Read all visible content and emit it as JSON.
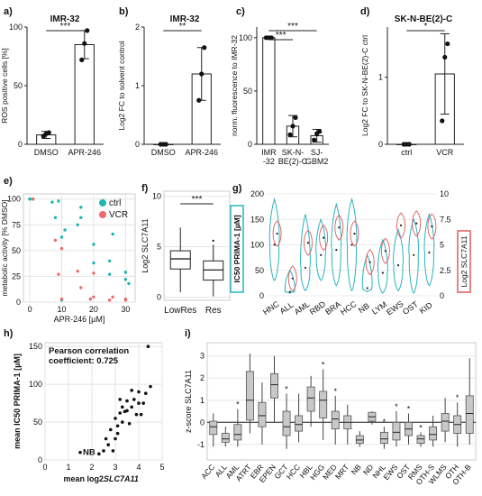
{
  "charts": [
    {
      "id": "a",
      "panel_label": "a)",
      "type": "bar",
      "title": "IMR-32",
      "ylabel": "ROS positive cells [%]",
      "categories": [
        "DMSO",
        "APR-246"
      ],
      "values": [
        8,
        85
      ],
      "errors": [
        3,
        12
      ],
      "points": [
        [
          7,
          9,
          10
        ],
        [
          72,
          86,
          97
        ]
      ],
      "ylim": [
        0,
        100
      ],
      "yticks": [
        0,
        50,
        100
      ],
      "significance": [
        {
          "from": 0,
          "to": 1,
          "label": "***"
        }
      ]
    },
    {
      "id": "b",
      "panel_label": "b)",
      "type": "bar",
      "title": "IMR-32",
      "ylabel": "Log2 FC to solvent control",
      "categories": [
        "DMSO",
        "APR-246"
      ],
      "values": [
        0,
        1.2
      ],
      "errors": [
        0,
        0.45
      ],
      "points": [
        [
          0,
          0,
          0
        ],
        [
          0.75,
          1.2,
          1.65
        ]
      ],
      "ylim": [
        0,
        2
      ],
      "yticks": [
        0,
        1,
        2
      ],
      "significance": [
        {
          "from": 0,
          "to": 1,
          "label": "**"
        }
      ]
    },
    {
      "id": "c",
      "panel_label": "c)",
      "type": "bar",
      "title": "",
      "ylabel": "norm. fluorescence to IMR-32",
      "categories": [
        "IMR -32",
        "SK-N- BE(2)-C",
        "SJ- GBM2"
      ],
      "values": [
        100,
        17,
        8
      ],
      "errors": [
        0,
        10,
        6
      ],
      "points": [
        [
          100,
          100,
          100
        ],
        [
          9,
          17,
          25
        ],
        [
          4,
          10,
          12
        ]
      ],
      "ylim": [
        0,
        110
      ],
      "yticks": [
        0,
        50,
        100
      ],
      "significance": [
        {
          "from": 0,
          "to": 1,
          "label": "***"
        },
        {
          "from": 0,
          "to": 2,
          "label": "***"
        }
      ]
    },
    {
      "id": "d",
      "panel_label": "d)",
      "type": "bar",
      "title": "SK-N-BE(2)-C",
      "ylabel": "Log2 FC to SK-N-BE(2)-C ctrl",
      "categories": [
        "ctrl",
        "VCR"
      ],
      "values": [
        0,
        1.05
      ],
      "errors": [
        0,
        0.6
      ],
      "points": [
        [
          0,
          0,
          0
        ],
        [
          0.35,
          1.3,
          1.5
        ]
      ],
      "ylim": [
        0,
        1.75
      ],
      "yticks": [
        0,
        1
      ],
      "significance": [
        {
          "from": 0,
          "to": 1,
          "label": "*"
        }
      ]
    }
  ],
  "scatter_e": {
    "panel_label": "e)",
    "type": "scatter",
    "xlabel": "APR-246 [µM]",
    "ylabel": "metabolic activity [% DMSO]",
    "xlim": [
      -2,
      33
    ],
    "ylim": [
      0,
      105
    ],
    "xticks": [
      0,
      10,
      20,
      30
    ],
    "yticks": [
      0,
      25,
      50,
      75,
      100
    ],
    "series": [
      {
        "name": "ctrl",
        "color": "#1fb6ad",
        "x": [
          0,
          0,
          0,
          1,
          7,
          8,
          9,
          10,
          10,
          11,
          15,
          16,
          16,
          19,
          20,
          20,
          25,
          25,
          26,
          30,
          30,
          31
        ],
        "y": [
          100,
          100,
          100,
          100,
          97,
          82,
          98,
          2,
          63,
          70,
          75,
          82,
          92,
          3,
          38,
          56,
          27,
          40,
          66,
          22,
          29,
          18
        ]
      },
      {
        "name": "VCR",
        "color": "#ee6b6b",
        "x": [
          1,
          8,
          9,
          10,
          10,
          15,
          16,
          19,
          20,
          20,
          25,
          26,
          30,
          30
        ],
        "y": [
          100,
          60,
          27,
          52,
          3,
          30,
          14,
          3,
          5,
          28,
          2,
          5,
          3,
          2
        ]
      }
    ]
  },
  "box_f": {
    "panel_label": "f)",
    "type": "box",
    "ylabel": "Log2 SLC7A11",
    "ylim": [
      -0.3,
      10.5
    ],
    "yticks": [
      0,
      5,
      10
    ],
    "categories": [
      "LowRes",
      "Res"
    ],
    "boxes": [
      {
        "whislo": 0.5,
        "q1": 2.8,
        "med": 3.8,
        "q3": 4.6,
        "whishi": 6.9
      },
      {
        "whislo": 0.1,
        "q1": 1.7,
        "med": 2.7,
        "q3": 3.6,
        "whishi": 5.2
      }
    ],
    "outliers": [
      [],
      [
        5.6
      ]
    ],
    "significance": [
      {
        "from": 0,
        "to": 1,
        "label": "***"
      }
    ]
  },
  "violin_g": {
    "panel_label": "g)",
    "type": "violin",
    "ylabel_left": "IC50 PRIMA-1 [µM]",
    "ylabel_right": "Log2 SLC7A11",
    "left_color": "#2ab3c0",
    "right_color": "#e05a5a",
    "ylim": [
      0,
      200
    ],
    "yticks": [
      0,
      50,
      100,
      150,
      200
    ],
    "right_yticks": [
      0,
      2.5,
      5,
      7.5,
      10
    ],
    "categories": [
      "HNC",
      "ALL",
      "AML",
      "RBD",
      "BRA",
      "HCC",
      "NB",
      "LYM",
      "EWS",
      "OST",
      "KID"
    ],
    "ic50_range": [
      [
        30,
        190
      ],
      [
        5,
        50
      ],
      [
        10,
        160
      ],
      [
        30,
        150
      ],
      [
        20,
        180
      ],
      [
        10,
        190
      ],
      [
        8,
        80
      ],
      [
        5,
        110
      ],
      [
        10,
        130
      ],
      [
        5,
        150
      ],
      [
        20,
        160
      ]
    ],
    "ic50_median": [
      100,
      8,
      55,
      80,
      90,
      100,
      15,
      45,
      60,
      80,
      85
    ],
    "log2_median": [
      6.1,
      1.7,
      5.2,
      5.7,
      6.7,
      6.1,
      3.3,
      4.4,
      6.9,
      7.1,
      6.8
    ]
  },
  "scatter_h": {
    "panel_label": "h)",
    "type": "scatter",
    "xlabel": "mean log2 SLC7A11",
    "ylabel": "mean IC50 PRIMA-1 [µM]",
    "xlim": [
      0,
      5
    ],
    "ylim": [
      0,
      155
    ],
    "xticks": [
      0,
      1,
      2,
      3,
      4,
      5
    ],
    "yticks": [
      0,
      50,
      100,
      150
    ],
    "annotation": "Pearson correlation coefficient: 0.725",
    "point_label": "NB",
    "point_label_x": 1.5,
    "point_label_y": 10,
    "x": [
      1.5,
      2.3,
      2.5,
      2.6,
      2.7,
      2.8,
      2.9,
      3.0,
      3.0,
      3.1,
      3.1,
      3.2,
      3.2,
      3.3,
      3.3,
      3.4,
      3.5,
      3.5,
      3.6,
      3.7,
      3.7,
      3.8,
      3.9,
      4.0,
      4.0,
      4.1,
      4.2,
      4.3,
      4.4,
      4.5
    ],
    "y": [
      10,
      8,
      12,
      28,
      20,
      40,
      12,
      28,
      55,
      35,
      45,
      62,
      80,
      50,
      70,
      64,
      65,
      78,
      48,
      92,
      70,
      80,
      60,
      90,
      75,
      60,
      75,
      88,
      150,
      97
    ]
  },
  "box_i": {
    "panel_label": "i)",
    "type": "box",
    "ylabel": "z-score SLC7A11",
    "ylim": [
      -1.7,
      3.6
    ],
    "yticks": [
      -1,
      0,
      1,
      2,
      3
    ],
    "categories": [
      "ACC",
      "ALL",
      "AML",
      "ATRT",
      "EBR",
      "EPEN",
      "GCT",
      "HCC",
      "HBL",
      "HGG",
      "MED",
      "MRT",
      "NB",
      "ND",
      "NHL",
      "EWS",
      "OST",
      "RMS",
      "OTH-S",
      "WLMS",
      "OTH",
      "OTH-B"
    ],
    "boxes": [
      {
        "whislo": -1.1,
        "q1": -0.55,
        "med": -0.2,
        "q3": 0.05,
        "whishi": 0.4
      },
      {
        "whislo": -1.1,
        "q1": -0.9,
        "med": -0.75,
        "q3": -0.5,
        "whishi": -0.2
      },
      {
        "whislo": -1.1,
        "q1": -0.8,
        "med": -0.55,
        "q3": -0.1,
        "whishi": 0.6
      },
      {
        "whislo": -0.5,
        "q1": 0.1,
        "med": 1.0,
        "q3": 2.3,
        "whishi": 3.1
      },
      {
        "whislo": -1.0,
        "q1": -0.2,
        "med": 0.3,
        "q3": 0.9,
        "whishi": 1.8
      },
      {
        "whislo": 0.0,
        "q1": 1.1,
        "med": 1.7,
        "q3": 2.2,
        "whishi": 3.0
      },
      {
        "whislo": -1.2,
        "q1": -0.6,
        "med": -0.2,
        "q3": 0.5,
        "whishi": 1.3
      },
      {
        "whislo": -0.9,
        "q1": -0.4,
        "med": -0.1,
        "q3": 0.3,
        "whishi": 1.3
      },
      {
        "whislo": -0.2,
        "q1": 0.5,
        "med": 1.1,
        "q3": 1.6,
        "whishi": 2.1
      },
      {
        "whislo": -0.8,
        "q1": 0.2,
        "med": 1.0,
        "q3": 1.4,
        "whishi": 2.4
      },
      {
        "whislo": -1.0,
        "q1": -0.3,
        "med": 0.15,
        "q3": 0.5,
        "whishi": 1.2
      },
      {
        "whislo": -1.0,
        "q1": -0.3,
        "med": 0.0,
        "q3": 0.3,
        "whishi": 0.8
      },
      {
        "whislo": -1.1,
        "q1": -0.95,
        "med": -0.8,
        "q3": -0.6,
        "whishi": -0.4
      },
      {
        "whislo": -0.1,
        "q1": 0.05,
        "med": 0.25,
        "q3": 0.45,
        "whishi": 0.5
      },
      {
        "whislo": -1.2,
        "q1": -0.95,
        "med": -0.75,
        "q3": -0.45,
        "whishi": -0.2
      },
      {
        "whislo": -1.1,
        "q1": -0.8,
        "med": -0.45,
        "q3": 0.0,
        "whishi": 0.5
      },
      {
        "whislo": -1.0,
        "q1": -0.6,
        "med": -0.3,
        "q3": 0.0,
        "whishi": 0.4
      },
      {
        "whislo": -1.1,
        "q1": -0.95,
        "med": -0.75,
        "q3": -0.6,
        "whishi": -0.45
      },
      {
        "whislo": -1.1,
        "q1": -0.8,
        "med": -0.55,
        "q3": -0.2,
        "whishi": 0.3
      },
      {
        "whislo": -0.9,
        "q1": -0.4,
        "med": 0.05,
        "q3": 0.4,
        "whishi": 1.1
      },
      {
        "whislo": -1.1,
        "q1": -0.5,
        "med": -0.1,
        "q3": 0.3,
        "whishi": 0.9
      },
      {
        "whislo": -1.0,
        "q1": -0.5,
        "med": 0.4,
        "q3": 1.2,
        "whishi": 2.9
      }
    ],
    "stars": [
      false,
      false,
      true,
      false,
      false,
      false,
      true,
      false,
      false,
      true,
      true,
      false,
      false,
      false,
      true,
      true,
      true,
      true,
      false,
      false,
      true,
      false
    ]
  }
}
